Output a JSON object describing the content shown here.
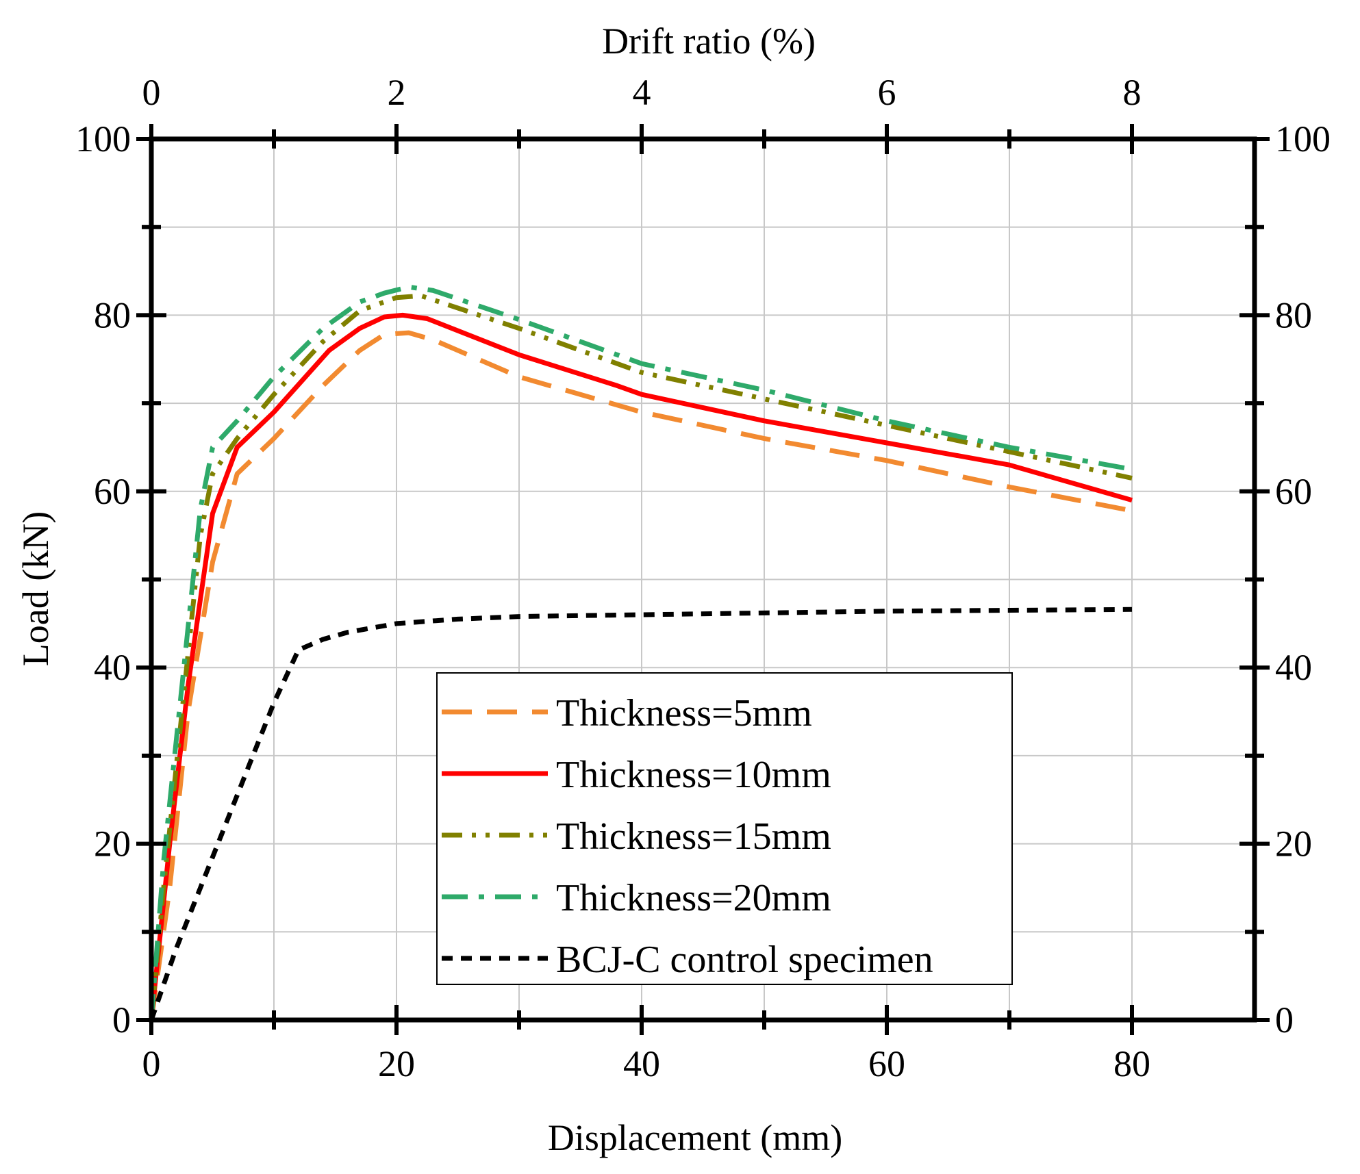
{
  "chart_data": {
    "type": "line",
    "xlabel": "Displacement (mm)",
    "ylabel": "Load (kN)",
    "x2label": "Drift ratio (%)",
    "xlim": [
      0,
      90
    ],
    "ylim": [
      0,
      100
    ],
    "x2lim": [
      0,
      9
    ],
    "xticks": [
      0,
      20,
      40,
      60,
      80
    ],
    "yticks": [
      0,
      20,
      40,
      60,
      80,
      100
    ],
    "x2ticks": [
      0,
      2,
      4,
      6,
      8
    ],
    "xticks_minor": [
      10,
      30,
      50,
      70
    ],
    "yticks_minor": [
      10,
      30,
      50,
      70,
      90
    ],
    "grid": true,
    "legend_position": "bottom-center",
    "series": [
      {
        "name": "Thickness=5mm",
        "color": "#F28A30",
        "style": "long-dash",
        "x": [
          0,
          1.5,
          3,
          5,
          7,
          10,
          14,
          17,
          19,
          21,
          23,
          30,
          40,
          50,
          60,
          70,
          80
        ],
        "y": [
          0,
          15,
          35,
          52,
          62,
          66,
          72,
          76,
          77.8,
          78,
          77.2,
          73,
          69,
          66,
          63.5,
          60.5,
          57.8
        ]
      },
      {
        "name": "Thickness=10mm",
        "color": "#FF0000",
        "style": "solid",
        "x": [
          0,
          1.5,
          3,
          5,
          7,
          10,
          14.5,
          17,
          19,
          20.5,
          22.5,
          30,
          38,
          40,
          50,
          60,
          70,
          80
        ],
        "y": [
          0,
          20,
          38,
          57.5,
          65,
          69,
          76,
          78.5,
          79.8,
          80,
          79.6,
          75.5,
          72,
          71,
          68,
          65.5,
          63,
          59
        ]
      },
      {
        "name": "Thickness=15mm",
        "color": "#808000",
        "style": "dash-dot-dot",
        "x": [
          0,
          1,
          2.5,
          4,
          5,
          7,
          10,
          14,
          17,
          20,
          22,
          30,
          40,
          50,
          60,
          70,
          80
        ],
        "y": [
          0,
          15,
          35,
          55,
          62,
          66,
          71,
          77,
          80.5,
          82,
          82.2,
          78.5,
          73.5,
          70.5,
          67.5,
          64.5,
          61.5
        ]
      },
      {
        "name": "Thickness=20mm",
        "color": "#2EAA6A",
        "style": "dash-dot",
        "x": [
          0,
          1,
          2.5,
          4,
          5,
          7,
          10,
          14,
          17,
          19,
          21,
          23,
          30,
          40,
          50,
          60,
          70,
          80
        ],
        "y": [
          0,
          18,
          38,
          58,
          65,
          68,
          73,
          78.5,
          81.5,
          82.5,
          83.2,
          82.8,
          79.5,
          74.5,
          71.5,
          68,
          65,
          62.5
        ]
      },
      {
        "name": "BCJ-C control specimen",
        "color": "#000000",
        "style": "short-dash",
        "x": [
          0,
          2,
          4,
          6,
          8,
          10,
          12,
          14,
          16,
          20,
          25,
          30,
          40,
          50,
          60,
          70,
          80
        ],
        "y": [
          0,
          8,
          15,
          22,
          29,
          36,
          42,
          43.2,
          44,
          45,
          45.5,
          45.8,
          46,
          46.2,
          46.4,
          46.5,
          46.6
        ]
      }
    ]
  }
}
